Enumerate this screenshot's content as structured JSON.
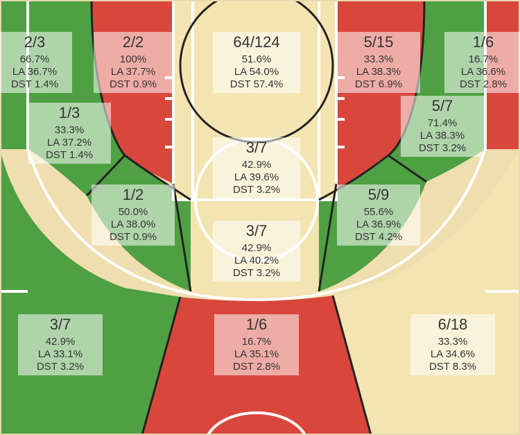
{
  "chart_data": {
    "type": "shot-chart",
    "colors": {
      "above": "#4fa043",
      "below": "#d9473c",
      "neutral": "#f3e4b2",
      "floor": "#efdfb0",
      "line": "#ffffff"
    },
    "zones": [
      {
        "id": "left-corner-three",
        "frac": "2/3",
        "pct": "66.7%",
        "la": "LA 36.7%",
        "dst": "DST 1.4%",
        "status": "above"
      },
      {
        "id": "left-baseline-mid",
        "frac": "2/2",
        "pct": "100%",
        "la": "LA 37.7%",
        "dst": "DST 0.9%",
        "status": "above"
      },
      {
        "id": "paint-restricted",
        "frac": "64/124",
        "pct": "51.6%",
        "la": "LA 54.0%",
        "dst": "DST 57.4%",
        "status": "neutral"
      },
      {
        "id": "right-baseline-mid",
        "frac": "5/15",
        "pct": "33.3%",
        "la": "LA 38.3%",
        "dst": "DST 6.9%",
        "status": "below"
      },
      {
        "id": "right-corner-three",
        "frac": "1/6",
        "pct": "16.7%",
        "la": "LA 36.6%",
        "dst": "DST 2.8%",
        "status": "below"
      },
      {
        "id": "left-mid-low",
        "frac": "1/3",
        "pct": "33.3%",
        "la": "LA 37.2%",
        "dst": "DST 1.4%",
        "status": "below"
      },
      {
        "id": "right-mid-low",
        "frac": "5/7",
        "pct": "71.4%",
        "la": "LA 38.3%",
        "dst": "DST 3.2%",
        "status": "above"
      },
      {
        "id": "paint-non-ra",
        "frac": "3/7",
        "pct": "42.9%",
        "la": "LA 39.6%",
        "dst": "DST 3.2%",
        "status": "neutral"
      },
      {
        "id": "left-elbow",
        "frac": "1/2",
        "pct": "50.0%",
        "la": "LA 38.0%",
        "dst": "DST 0.9%",
        "status": "above"
      },
      {
        "id": "right-elbow",
        "frac": "5/9",
        "pct": "55.6%",
        "la": "LA 36.9%",
        "dst": "DST 4.2%",
        "status": "above"
      },
      {
        "id": "top-key",
        "frac": "3/7",
        "pct": "42.9%",
        "la": "LA 40.2%",
        "dst": "DST 3.2%",
        "status": "neutral"
      },
      {
        "id": "left-wing-three",
        "frac": "3/7",
        "pct": "42.9%",
        "la": "LA 33.1%",
        "dst": "DST 3.2%",
        "status": "above"
      },
      {
        "id": "top-three",
        "frac": "1/6",
        "pct": "16.7%",
        "la": "LA 35.1%",
        "dst": "DST 2.8%",
        "status": "below"
      },
      {
        "id": "right-wing-three",
        "frac": "6/18",
        "pct": "33.3%",
        "la": "LA 34.6%",
        "dst": "DST 8.3%",
        "status": "neutral"
      }
    ]
  }
}
